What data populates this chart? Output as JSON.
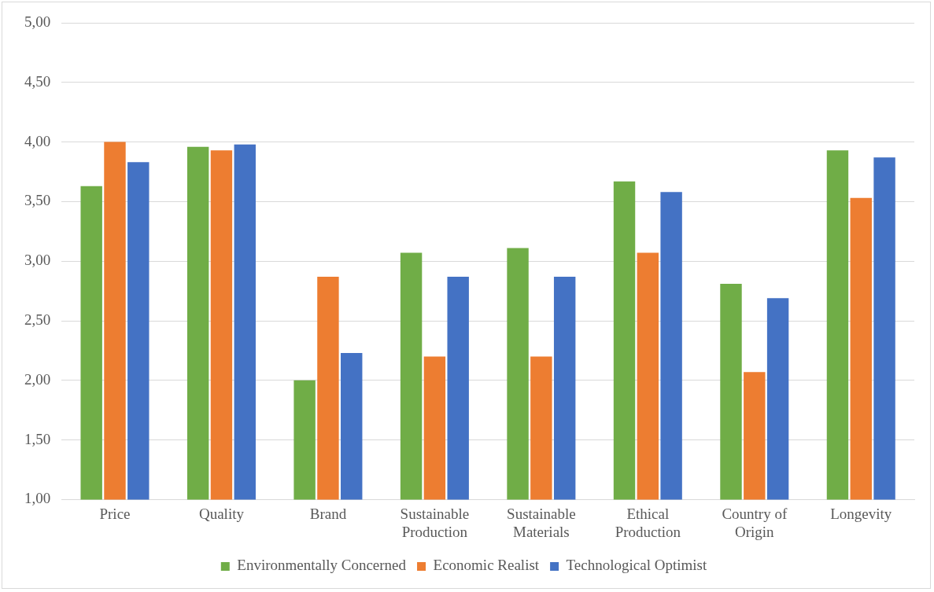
{
  "chart_data": {
    "type": "bar",
    "categories": [
      "Price",
      "Quality",
      "Brand",
      "Sustainable Production",
      "Sustainable Materials",
      "Ethical Production",
      "Country of Origin",
      "Longevity"
    ],
    "series": [
      {
        "name": "Environmentally Concerned",
        "color": "#70ad47",
        "values": [
          3.63,
          3.96,
          2.0,
          3.07,
          3.11,
          3.67,
          2.81,
          3.93
        ]
      },
      {
        "name": "Economic Realist",
        "color": "#ed7d31",
        "values": [
          4.0,
          3.93,
          2.87,
          2.2,
          2.2,
          3.07,
          2.07,
          3.53
        ]
      },
      {
        "name": "Technological Optimist",
        "color": "#4472c4",
        "values": [
          3.83,
          3.98,
          2.23,
          2.87,
          2.87,
          3.58,
          2.69,
          3.87
        ]
      }
    ],
    "ylim": [
      1,
      5
    ],
    "yticks": [
      {
        "value": 1,
        "label": "1,00"
      },
      {
        "value": 1.5,
        "label": "1,50"
      },
      {
        "value": 2,
        "label": "2,00"
      },
      {
        "value": 2.5,
        "label": "2,50"
      },
      {
        "value": 3,
        "label": "3,00"
      },
      {
        "value": 3.5,
        "label": "3,50"
      },
      {
        "value": 4,
        "label": "4,00"
      },
      {
        "value": 4.5,
        "label": "4,50"
      },
      {
        "value": 5,
        "label": "5,00"
      }
    ],
    "grid": "y",
    "legend": "bottom"
  }
}
